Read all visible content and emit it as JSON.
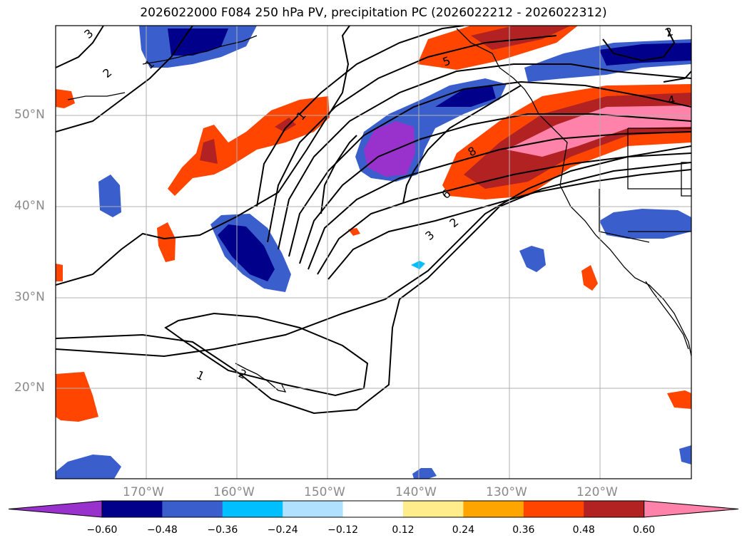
{
  "title": "2026022000 F084 250 hPa PV, precipitation PC (2026022212 - 2026022312)",
  "lat_labels": [
    "50°N",
    "40°N",
    "30°N",
    "20°N"
  ],
  "lon_labels": [
    "170°W",
    "160°W",
    "150°W",
    "140°W",
    "130°W",
    "120°W"
  ],
  "colorbar": {
    "ticks": [
      "−0.60",
      "−0.48",
      "−0.36",
      "−0.24",
      "−0.12",
      "0.12",
      "0.24",
      "0.36",
      "0.48",
      "0.60"
    ],
    "colors": [
      "#9932cc",
      "#00008b",
      "#3a5fcd",
      "#00bfff",
      "#b0e2ff",
      "#ffffff",
      "#ffec8b",
      "#ffa500",
      "#ff4500",
      "#b22222",
      "#ff82ab"
    ]
  },
  "contour_labels": [
    "3",
    "2",
    "1",
    "5",
    "1",
    "8",
    "6",
    "2",
    "3",
    "1",
    "2",
    "2",
    "4"
  ],
  "colors": {
    "axis_text": "#8a8a8a",
    "grid": "#b0b0b0",
    "contour": "#000000"
  }
}
